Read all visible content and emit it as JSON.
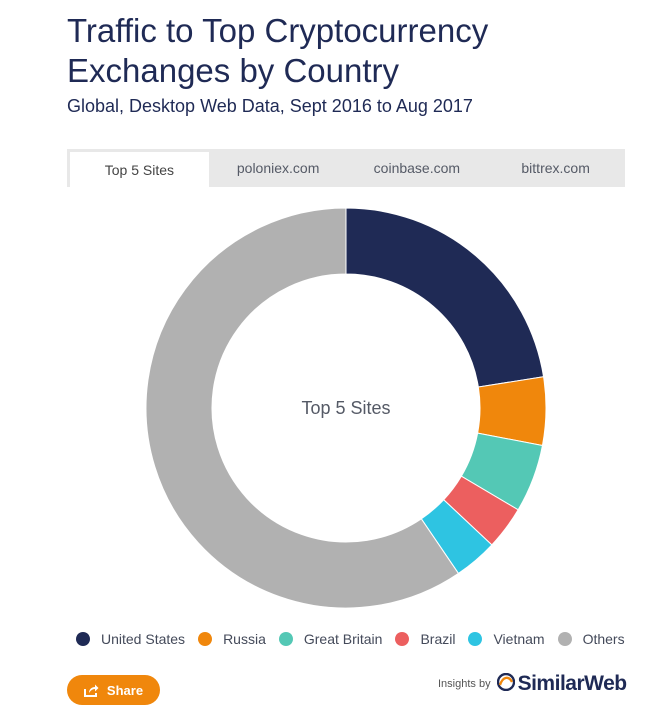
{
  "header": {
    "title": "Traffic to Top Cryptocurrency Exchanges by Country",
    "subtitle": "Global, Desktop Web Data, Sept 2016 to Aug 2017"
  },
  "tabs": [
    {
      "label": "Top 5 Sites",
      "active": true
    },
    {
      "label": "poloniex.com",
      "active": false
    },
    {
      "label": "coinbase.com",
      "active": false
    },
    {
      "label": "bittrex.com",
      "active": false
    }
  ],
  "chart_data": {
    "type": "pie",
    "center_label": "Top 5 Sites",
    "categories": [
      "United States",
      "Russia",
      "Great Britain",
      "Brazil",
      "Vietnam",
      "Others"
    ],
    "values": [
      22.5,
      5.5,
      5.5,
      3.5,
      3.5,
      59.5
    ],
    "colors": [
      "#1f2a55",
      "#f0870c",
      "#54c8b5",
      "#ec5f5f",
      "#2ec4e2",
      "#b1b1b1"
    ],
    "legend_position": "bottom"
  },
  "footer": {
    "share_label": "Share",
    "insights_label": "Insights by",
    "brand_name": "SimilarWeb"
  }
}
